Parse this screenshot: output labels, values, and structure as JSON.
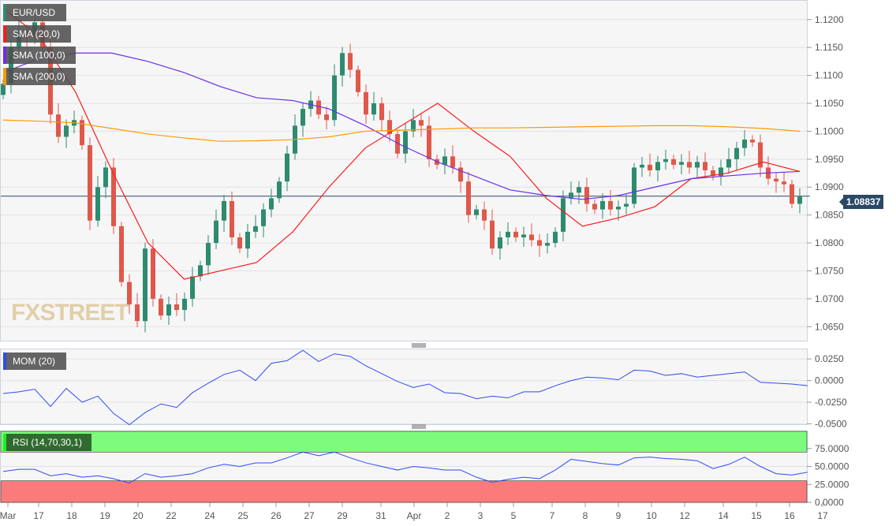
{
  "chart_data": [
    {
      "type": "candlestick",
      "title": "EUR/USD",
      "ylim": [
        1.0625,
        1.1235
      ],
      "yticks": [
        "1.1200",
        "1.1150",
        "1.1100",
        "1.1050",
        "1.1000",
        "1.0950",
        "1.0900",
        "1.0850",
        "1.0800",
        "1.0750",
        "1.0700",
        "1.0650"
      ],
      "last_price": "1.08837",
      "grid": "horizontal",
      "up_color": "#2e8b6f",
      "down_color": "#e0584a",
      "close": [
        1.1085,
        1.115,
        1.118,
        1.117,
        1.1195,
        1.115,
        1.103,
        1.099,
        1.101,
        1.102,
        1.0975,
        1.084,
        1.09,
        1.0935,
        1.083,
        1.073,
        1.069,
        1.066,
        1.079,
        1.07,
        1.067,
        1.069,
        1.068,
        1.07,
        1.074,
        1.076,
        1.08,
        1.084,
        1.0875,
        1.081,
        1.079,
        1.082,
        1.083,
        1.086,
        1.088,
        1.091,
        1.096,
        1.101,
        1.104,
        1.1055,
        1.103,
        1.102,
        1.11,
        1.114,
        1.111,
        1.107,
        1.103,
        1.105,
        1.102,
        1.0995,
        1.096,
        1.1,
        1.102,
        1.101,
        1.095,
        1.094,
        1.0955,
        1.0935,
        1.091,
        1.085,
        1.086,
        1.084,
        1.079,
        1.081,
        1.082,
        1.081,
        1.0815,
        1.0805,
        1.0795,
        1.08,
        1.082,
        1.088,
        1.089,
        1.09,
        1.087,
        1.086,
        1.0875,
        1.086,
        1.0865,
        1.087,
        1.0935,
        1.094,
        1.093,
        1.0945,
        1.095,
        1.094,
        1.0945,
        1.0935,
        1.0945,
        1.093,
        1.092,
        1.0935,
        1.095,
        1.097,
        1.0985,
        1.098,
        1.0935,
        1.0915,
        1.091,
        1.0905,
        1.087,
        1.0884
      ],
      "overlays": [
        {
          "name": "SMA (20,0)",
          "color": "#ff1a1a",
          "values": [
            1.122,
            1.117,
            1.107,
            1.093,
            1.08,
            1.0735,
            1.075,
            1.0765,
            1.082,
            1.09,
            1.097,
            1.101,
            1.105,
            1.1,
            1.0955,
            1.088,
            1.083,
            1.0845,
            1.0865,
            1.0915,
            1.0925,
            1.0945,
            1.0928
          ]
        },
        {
          "name": "SMA (100,0)",
          "color": "#6a2ee8",
          "values": [
            1.1105,
            1.113,
            1.114,
            1.114,
            1.1125,
            1.1105,
            1.108,
            1.106,
            1.1055,
            1.104,
            1.101,
            1.0975,
            1.0945,
            1.092,
            1.0895,
            1.0885,
            1.0878,
            1.0885,
            1.09,
            1.0915,
            1.092,
            1.0925,
            1.0928
          ]
        },
        {
          "name": "SMA (200,0)",
          "color": "#ff9900",
          "values": [
            1.102,
            1.1018,
            1.1015,
            1.1005,
            1.0995,
            1.0988,
            1.0982,
            1.0983,
            1.0985,
            1.099,
            1.1,
            1.1002,
            1.1004,
            1.1006,
            1.1006,
            1.1007,
            1.1008,
            1.1009,
            1.101,
            1.101,
            1.1008,
            1.1005,
            1.1
          ]
        }
      ]
    },
    {
      "type": "line",
      "title": "MOM (20)",
      "color": "#2f4cf0",
      "ylim": [
        -0.0505,
        0.037
      ],
      "yticks": [
        "0.0250",
        "0.0000",
        "-0.0250",
        "-0.0500"
      ],
      "values": [
        -0.015,
        -0.013,
        -0.01,
        -0.03,
        -0.009,
        -0.025,
        -0.018,
        -0.038,
        -0.051,
        -0.037,
        -0.027,
        -0.031,
        -0.014,
        -0.003,
        0.007,
        0.012,
        0.0,
        0.02,
        0.023,
        0.035,
        0.022,
        0.031,
        0.028,
        0.017,
        0.008,
        -0.001,
        -0.008,
        -0.004,
        -0.014,
        -0.015,
        -0.021,
        -0.018,
        -0.02,
        -0.013,
        -0.013,
        -0.006,
        0.0,
        0.004,
        0.003,
        0.001,
        0.012,
        0.011,
        0.006,
        0.008,
        0.004,
        0.006,
        0.008,
        0.01,
        -0.002,
        -0.003,
        -0.004,
        -0.006
      ]
    },
    {
      "type": "line",
      "title": "RSI (14,70,30,1)",
      "color": "#2f4cf0",
      "overbought": 70,
      "oversold": 30,
      "overbought_color": "#7dfb7d",
      "oversold_color": "#fb7b7b",
      "ylim": [
        0,
        100
      ],
      "yticks": [
        "75.0000",
        "50.0000",
        "25.0000",
        "0.0000"
      ],
      "values": [
        43,
        46,
        46,
        37,
        40,
        35,
        37,
        33,
        27,
        40,
        35,
        37,
        40,
        48,
        53,
        50,
        55,
        55,
        62,
        70,
        65,
        70,
        62,
        55,
        50,
        45,
        50,
        48,
        45,
        45,
        35,
        28,
        32,
        35,
        33,
        45,
        60,
        57,
        54,
        52,
        62,
        63,
        61,
        60,
        58,
        47,
        53,
        63,
        50,
        40,
        38,
        42
      ]
    }
  ],
  "x_labels": [
    "Mar",
    "17",
    "18",
    "19",
    "20",
    "22",
    "24",
    "25",
    "26",
    "27",
    "29",
    "31",
    "Apr",
    "2",
    "3",
    "5",
    "7",
    "8",
    "9",
    "10",
    "12",
    "14",
    "15",
    "16",
    "17"
  ],
  "watermark": {
    "part1": "FX",
    "part2": "STREET"
  }
}
